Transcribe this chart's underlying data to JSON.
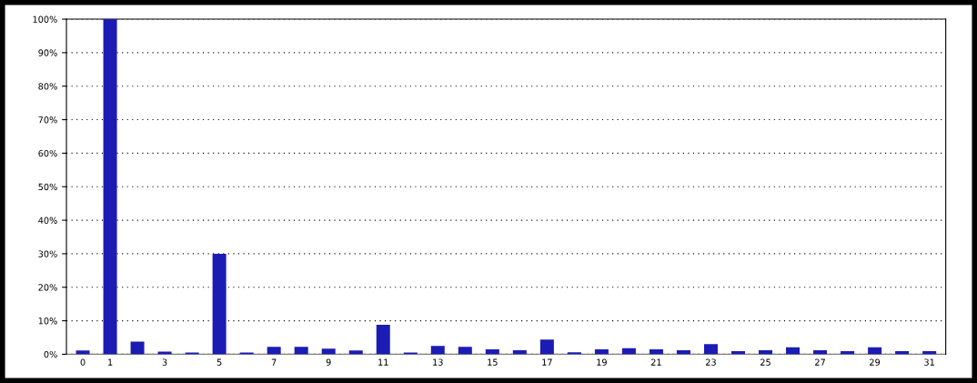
{
  "chart_data": {
    "type": "bar",
    "categories": [
      "0",
      "1",
      null,
      "3",
      null,
      "5",
      null,
      "7",
      null,
      "9",
      null,
      "11",
      null,
      "13",
      null,
      "15",
      null,
      "17",
      null,
      "19",
      null,
      "21",
      null,
      "23",
      null,
      "25",
      null,
      "27",
      null,
      "29",
      null,
      "31"
    ],
    "values": [
      1.1,
      100,
      3.8,
      0.8,
      0.5,
      30,
      0.5,
      2.2,
      2.2,
      1.7,
      1.1,
      8.8,
      0.5,
      2.5,
      2.2,
      1.5,
      1.2,
      4.4,
      0.6,
      1.5,
      1.8,
      1.5,
      1.2,
      3.0,
      0.9,
      1.2,
      2.1,
      1.2,
      0.9,
      2.1,
      0.9,
      0.9
    ],
    "color": "#1c1cb4",
    "ylim": [
      0,
      100
    ],
    "yticks": [
      {
        "value": 0,
        "label": "0%"
      },
      {
        "value": 10,
        "label": "10%"
      },
      {
        "value": 20,
        "label": "20%"
      },
      {
        "value": 30,
        "label": "30%"
      },
      {
        "value": 40,
        "label": "40%"
      },
      {
        "value": 50,
        "label": "50%"
      },
      {
        "value": 60,
        "label": "60%"
      },
      {
        "value": 70,
        "label": "70%"
      },
      {
        "value": 80,
        "label": "80%"
      },
      {
        "value": 90,
        "label": "90%"
      },
      {
        "value": 100,
        "label": "100%"
      }
    ],
    "grid": "y"
  }
}
